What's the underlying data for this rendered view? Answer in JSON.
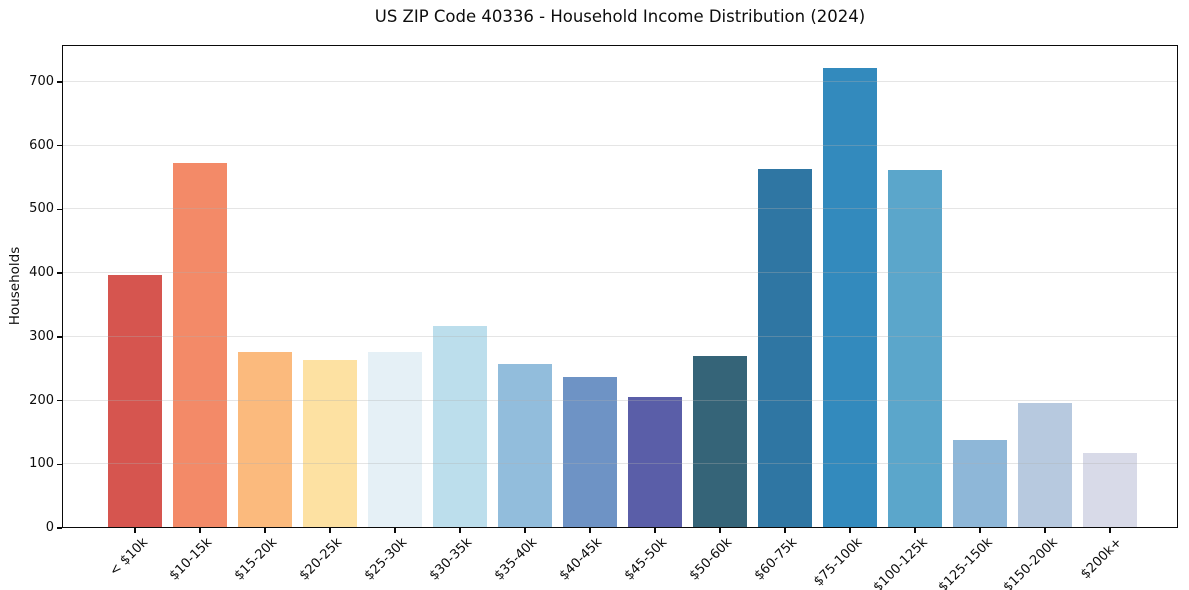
{
  "title": "US ZIP Code 40336 - Household Income Distribution (2024)",
  "chart_data": {
    "type": "bar",
    "title": "US ZIP Code 40336 - Household Income Distribution (2024)",
    "xlabel": "",
    "ylabel": "Households",
    "categories": [
      "< $10k",
      "$10-15k",
      "$15-20k",
      "$20-25k",
      "$25-30k",
      "$30-35k",
      "$35-40k",
      "$40-45k",
      "$45-50k",
      "$50-60k",
      "$60-75k",
      "$75-100k",
      "$100-125k",
      "$125-150k",
      "$150-200k",
      "$200k+"
    ],
    "values": [
      397,
      573,
      277,
      263,
      277,
      317,
      258,
      237,
      206,
      270,
      564,
      722,
      562,
      138,
      196,
      118
    ],
    "bar_colors": [
      "#d6554f",
      "#f38a68",
      "#fbba7d",
      "#fde1a2",
      "#e5f0f6",
      "#bcdeec",
      "#92bddc",
      "#6e93c5",
      "#5a5ea8",
      "#356478",
      "#2f76a3",
      "#338abd",
      "#5ba6cb",
      "#8eb7d8",
      "#b7c9df",
      "#d8dae8"
    ],
    "yticks": [
      0,
      100,
      200,
      300,
      400,
      500,
      600,
      700
    ],
    "ylim": [
      0,
      758
    ],
    "grid": "horizontal",
    "gridline_color": "#e4e4e4",
    "background_color": "#ffffff",
    "legend": "none"
  }
}
